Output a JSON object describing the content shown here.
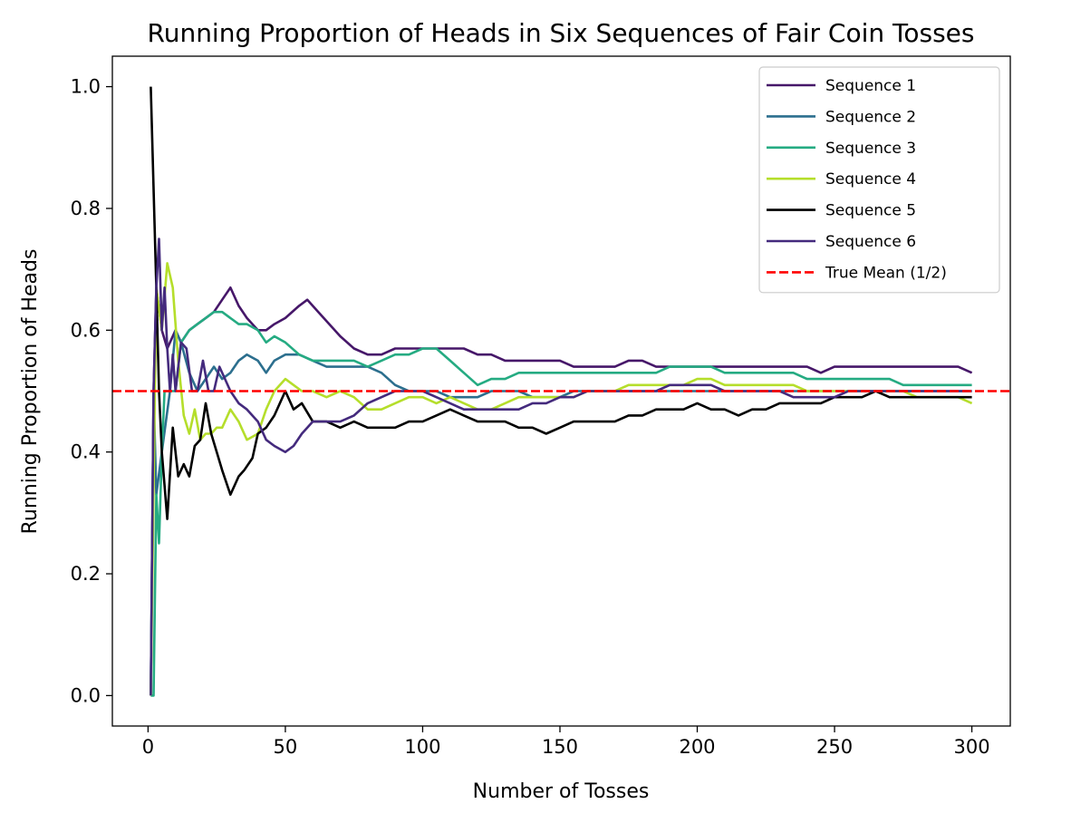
{
  "chart_data": {
    "type": "line",
    "title": "Running Proportion of Heads in Six Sequences of Fair Coin Tosses",
    "xlabel": "Number of Tosses",
    "ylabel": "Running Proportion of Heads",
    "xlim": [
      -13,
      314
    ],
    "ylim": [
      -0.05,
      1.05
    ],
    "xticks": [
      0,
      50,
      100,
      150,
      200,
      250,
      300
    ],
    "xtick_labels": [
      "0",
      "50",
      "100",
      "150",
      "200",
      "250",
      "300"
    ],
    "yticks": [
      0.0,
      0.2,
      0.4,
      0.6,
      0.8,
      1.0
    ],
    "ytick_labels": [
      "0.0",
      "0.2",
      "0.4",
      "0.6",
      "0.8",
      "1.0"
    ],
    "grid": false,
    "legend_position": "top-right",
    "series": [
      {
        "name": "Sequence 1",
        "color": "#461769",
        "x": [
          1,
          2,
          3,
          5,
          7,
          10,
          12,
          15,
          18,
          21,
          24,
          27,
          30,
          33,
          36,
          40,
          43,
          46,
          50,
          55,
          58,
          62,
          66,
          70,
          75,
          80,
          85,
          90,
          95,
          100,
          105,
          110,
          115,
          120,
          125,
          130,
          135,
          140,
          145,
          150,
          155,
          160,
          165,
          170,
          175,
          180,
          185,
          190,
          195,
          200,
          205,
          210,
          215,
          220,
          225,
          230,
          235,
          240,
          245,
          250,
          255,
          260,
          265,
          270,
          275,
          280,
          285,
          290,
          295,
          300
        ],
        "values": [
          0.0,
          0.5,
          0.67,
          0.6,
          0.57,
          0.6,
          0.58,
          0.6,
          0.61,
          0.62,
          0.63,
          0.65,
          0.67,
          0.64,
          0.62,
          0.6,
          0.6,
          0.61,
          0.62,
          0.64,
          0.65,
          0.63,
          0.61,
          0.59,
          0.57,
          0.56,
          0.56,
          0.57,
          0.57,
          0.57,
          0.57,
          0.57,
          0.57,
          0.56,
          0.56,
          0.55,
          0.55,
          0.55,
          0.55,
          0.55,
          0.54,
          0.54,
          0.54,
          0.54,
          0.55,
          0.55,
          0.54,
          0.54,
          0.54,
          0.54,
          0.54,
          0.54,
          0.54,
          0.54,
          0.54,
          0.54,
          0.54,
          0.54,
          0.53,
          0.54,
          0.54,
          0.54,
          0.54,
          0.54,
          0.54,
          0.54,
          0.54,
          0.54,
          0.54,
          0.53
        ]
      },
      {
        "name": "Sequence 2",
        "color": "#2c6f8e",
        "x": [
          1,
          2,
          3,
          5,
          8,
          10,
          12,
          15,
          18,
          21,
          24,
          27,
          30,
          33,
          36,
          40,
          43,
          46,
          50,
          55,
          60,
          65,
          70,
          75,
          80,
          85,
          90,
          95,
          100,
          105,
          110,
          115,
          120,
          125,
          130,
          135,
          140,
          145,
          150,
          155,
          160,
          165,
          170,
          175,
          180,
          185,
          190,
          195,
          200,
          205,
          210,
          215,
          220,
          225,
          230,
          235,
          240,
          245,
          250,
          255,
          260,
          265,
          270,
          275,
          280,
          285,
          290,
          295,
          300
        ],
        "values": [
          0.0,
          0.5,
          0.33,
          0.4,
          0.5,
          0.6,
          0.58,
          0.53,
          0.5,
          0.52,
          0.54,
          0.52,
          0.53,
          0.55,
          0.56,
          0.55,
          0.53,
          0.55,
          0.56,
          0.56,
          0.55,
          0.54,
          0.54,
          0.54,
          0.54,
          0.53,
          0.51,
          0.5,
          0.5,
          0.5,
          0.49,
          0.49,
          0.49,
          0.5,
          0.5,
          0.5,
          0.49,
          0.49,
          0.49,
          0.5,
          0.5,
          0.5,
          0.5,
          0.5,
          0.5,
          0.5,
          0.5,
          0.5,
          0.5,
          0.5,
          0.5,
          0.5,
          0.5,
          0.5,
          0.5,
          0.5,
          0.5,
          0.5,
          0.5,
          0.5,
          0.5,
          0.5,
          0.5,
          0.5,
          0.5,
          0.5,
          0.5,
          0.5,
          0.5
        ]
      },
      {
        "name": "Sequence 3",
        "color": "#25ab82",
        "x": [
          1,
          2,
          3,
          4,
          5,
          6,
          8,
          10,
          12,
          15,
          18,
          21,
          24,
          27,
          30,
          33,
          36,
          40,
          43,
          46,
          50,
          55,
          60,
          65,
          70,
          75,
          80,
          85,
          90,
          95,
          100,
          105,
          110,
          115,
          120,
          125,
          130,
          135,
          140,
          145,
          150,
          155,
          160,
          165,
          170,
          175,
          180,
          185,
          190,
          195,
          200,
          205,
          210,
          215,
          220,
          225,
          230,
          235,
          240,
          245,
          250,
          255,
          260,
          265,
          270,
          275,
          280,
          285,
          290,
          295,
          300
        ],
        "values": [
          0.0,
          0.0,
          0.33,
          0.25,
          0.4,
          0.5,
          0.5,
          0.5,
          0.58,
          0.6,
          0.61,
          0.62,
          0.63,
          0.63,
          0.62,
          0.61,
          0.61,
          0.6,
          0.58,
          0.59,
          0.58,
          0.56,
          0.55,
          0.55,
          0.55,
          0.55,
          0.54,
          0.55,
          0.56,
          0.56,
          0.57,
          0.57,
          0.55,
          0.53,
          0.51,
          0.52,
          0.52,
          0.53,
          0.53,
          0.53,
          0.53,
          0.53,
          0.53,
          0.53,
          0.53,
          0.53,
          0.53,
          0.53,
          0.54,
          0.54,
          0.54,
          0.54,
          0.53,
          0.53,
          0.53,
          0.53,
          0.53,
          0.53,
          0.52,
          0.52,
          0.52,
          0.52,
          0.52,
          0.52,
          0.52,
          0.51,
          0.51,
          0.51,
          0.51,
          0.51,
          0.51
        ]
      },
      {
        "name": "Sequence 4",
        "color": "#b5de2b",
        "x": [
          1,
          3,
          5,
          7,
          9,
          11,
          13,
          15,
          17,
          19,
          21,
          23,
          25,
          27,
          30,
          33,
          36,
          40,
          43,
          46,
          50,
          53,
          56,
          60,
          65,
          70,
          75,
          80,
          85,
          90,
          95,
          100,
          105,
          110,
          115,
          120,
          125,
          130,
          135,
          140,
          145,
          150,
          155,
          160,
          165,
          170,
          175,
          180,
          185,
          190,
          195,
          200,
          205,
          210,
          215,
          220,
          225,
          230,
          235,
          240,
          245,
          250,
          255,
          260,
          265,
          270,
          275,
          280,
          285,
          290,
          295,
          300
        ],
        "values": [
          0.0,
          0.67,
          0.6,
          0.71,
          0.67,
          0.55,
          0.46,
          0.43,
          0.47,
          0.42,
          0.43,
          0.43,
          0.44,
          0.44,
          0.47,
          0.45,
          0.42,
          0.43,
          0.47,
          0.5,
          0.52,
          0.51,
          0.5,
          0.5,
          0.49,
          0.5,
          0.49,
          0.47,
          0.47,
          0.48,
          0.49,
          0.49,
          0.48,
          0.49,
          0.48,
          0.47,
          0.47,
          0.48,
          0.49,
          0.49,
          0.49,
          0.49,
          0.49,
          0.5,
          0.5,
          0.5,
          0.51,
          0.51,
          0.51,
          0.51,
          0.51,
          0.52,
          0.52,
          0.51,
          0.51,
          0.51,
          0.51,
          0.51,
          0.51,
          0.5,
          0.5,
          0.5,
          0.5,
          0.5,
          0.5,
          0.5,
          0.5,
          0.49,
          0.49,
          0.49,
          0.49,
          0.48
        ]
      },
      {
        "name": "Sequence 5",
        "color": "#000000",
        "x": [
          1,
          3,
          4,
          5,
          7,
          9,
          11,
          13,
          15,
          17,
          19,
          21,
          23,
          25,
          27,
          30,
          33,
          35,
          38,
          40,
          43,
          46,
          50,
          53,
          56,
          60,
          65,
          70,
          75,
          80,
          85,
          90,
          95,
          100,
          105,
          110,
          115,
          120,
          125,
          130,
          135,
          140,
          145,
          150,
          155,
          160,
          165,
          170,
          175,
          180,
          185,
          190,
          195,
          200,
          205,
          210,
          215,
          220,
          225,
          230,
          235,
          240,
          245,
          250,
          255,
          260,
          265,
          270,
          275,
          280,
          285,
          290,
          295,
          300
        ],
        "values": [
          1.0,
          0.67,
          0.5,
          0.4,
          0.29,
          0.44,
          0.36,
          0.38,
          0.36,
          0.41,
          0.42,
          0.48,
          0.43,
          0.4,
          0.37,
          0.33,
          0.36,
          0.37,
          0.39,
          0.43,
          0.44,
          0.46,
          0.5,
          0.47,
          0.48,
          0.45,
          0.45,
          0.44,
          0.45,
          0.44,
          0.44,
          0.44,
          0.45,
          0.45,
          0.46,
          0.47,
          0.46,
          0.45,
          0.45,
          0.45,
          0.44,
          0.44,
          0.43,
          0.44,
          0.45,
          0.45,
          0.45,
          0.45,
          0.46,
          0.46,
          0.47,
          0.47,
          0.47,
          0.48,
          0.47,
          0.47,
          0.46,
          0.47,
          0.47,
          0.48,
          0.48,
          0.48,
          0.48,
          0.49,
          0.49,
          0.49,
          0.5,
          0.49,
          0.49,
          0.49,
          0.49,
          0.49,
          0.49,
          0.49
        ]
      },
      {
        "name": "Sequence 6",
        "color": "#442a7d",
        "x": [
          1,
          2,
          3,
          4,
          5,
          6,
          7,
          8,
          9,
          10,
          12,
          14,
          16,
          18,
          20,
          22,
          24,
          26,
          28,
          30,
          33,
          36,
          40,
          43,
          46,
          50,
          53,
          56,
          60,
          65,
          70,
          75,
          80,
          85,
          90,
          95,
          100,
          105,
          110,
          115,
          120,
          125,
          130,
          135,
          140,
          145,
          150,
          155,
          160,
          165,
          170,
          175,
          180,
          185,
          190,
          195,
          200,
          205,
          210,
          215,
          220,
          225,
          230,
          235,
          240,
          245,
          250,
          255,
          260,
          265,
          270,
          275,
          280,
          285,
          290,
          295,
          300
        ],
        "values": [
          0.0,
          0.5,
          0.67,
          0.75,
          0.6,
          0.67,
          0.57,
          0.5,
          0.56,
          0.5,
          0.58,
          0.57,
          0.5,
          0.5,
          0.55,
          0.5,
          0.5,
          0.54,
          0.52,
          0.5,
          0.48,
          0.47,
          0.45,
          0.42,
          0.41,
          0.4,
          0.41,
          0.43,
          0.45,
          0.45,
          0.45,
          0.46,
          0.48,
          0.49,
          0.5,
          0.5,
          0.5,
          0.49,
          0.48,
          0.47,
          0.47,
          0.47,
          0.47,
          0.47,
          0.48,
          0.48,
          0.49,
          0.49,
          0.5,
          0.5,
          0.5,
          0.5,
          0.5,
          0.5,
          0.51,
          0.51,
          0.51,
          0.51,
          0.5,
          0.5,
          0.5,
          0.5,
          0.5,
          0.49,
          0.49,
          0.49,
          0.49,
          0.5,
          0.5,
          0.5,
          0.5,
          0.5,
          0.5,
          0.5,
          0.5,
          0.5,
          0.5
        ]
      },
      {
        "name": "True Mean (1/2)",
        "color": "#ff0000",
        "style": "dashed",
        "x": [
          -13,
          314
        ],
        "values": [
          0.5,
          0.5
        ]
      }
    ]
  }
}
